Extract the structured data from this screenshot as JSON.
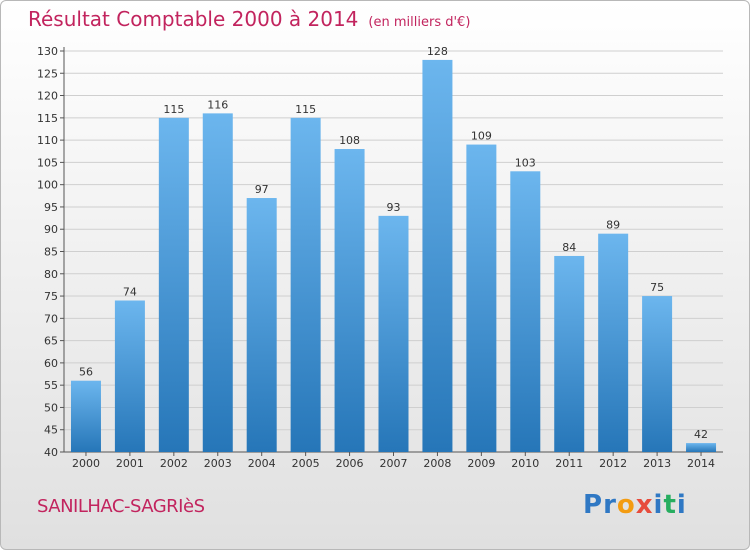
{
  "header": {
    "title": "Résultat Comptable 2000 à 2014",
    "unit": "(en milliers d'€)"
  },
  "footer": {
    "commune": "SANILHAC-SAGRIèS",
    "brand_letters": [
      "P",
      "r",
      "o",
      "x",
      "i",
      "t",
      "i"
    ],
    "brand_colors": [
      "#2f78c4",
      "#2f78c4",
      "#f39c12",
      "#e74c3c",
      "#2f78c4",
      "#27ae60",
      "#2f78c4"
    ]
  },
  "colors": {
    "title": "#c2245e",
    "bar_top": "#6cb6ee",
    "bar_bottom": "#2676b8",
    "grid": "#cfcfcf"
  },
  "chart_data": {
    "type": "bar",
    "categories": [
      "2000",
      "2001",
      "2002",
      "2003",
      "2004",
      "2005",
      "2006",
      "2007",
      "2008",
      "2009",
      "2010",
      "2011",
      "2012",
      "2013",
      "2014"
    ],
    "values": [
      56,
      74,
      115,
      116,
      97,
      115,
      108,
      93,
      128,
      109,
      103,
      84,
      89,
      75,
      42
    ],
    "ylim": [
      40,
      130
    ],
    "yticks": [
      40,
      45,
      50,
      55,
      60,
      65,
      70,
      75,
      80,
      85,
      90,
      95,
      100,
      105,
      110,
      115,
      120,
      125,
      130
    ],
    "grid": true
  }
}
